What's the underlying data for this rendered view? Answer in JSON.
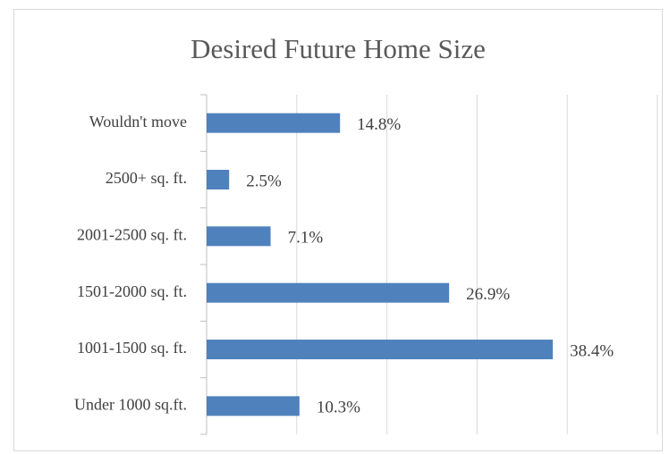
{
  "chart_data": {
    "type": "hbar",
    "title": "Desired Future Home Size",
    "categories": [
      "Wouldn't move",
      "2500+ sq. ft.",
      "2001-2500 sq. ft.",
      "1501-2000 sq. ft.",
      "1001-1500 sq. ft.",
      "Under 1000 sq.ft."
    ],
    "values": [
      14.8,
      2.5,
      7.1,
      26.9,
      38.4,
      10.3
    ],
    "value_labels": [
      "14.8%",
      "2.5%",
      "7.1%",
      "26.9%",
      "38.4%",
      "10.3%"
    ],
    "color": "#4f81bd",
    "xlim": [
      0,
      50
    ],
    "xticks": [
      0,
      10,
      20,
      30,
      40,
      50
    ],
    "grid": true
  }
}
